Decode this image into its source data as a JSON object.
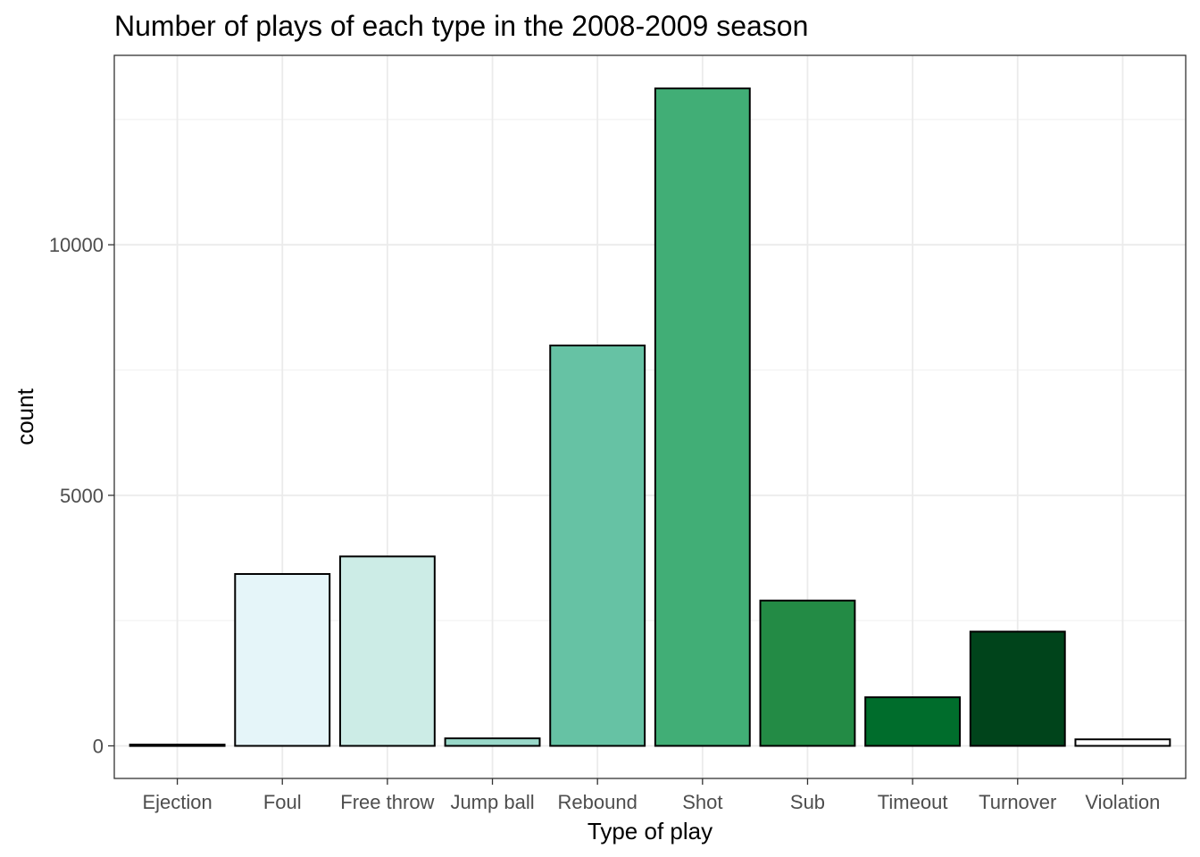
{
  "chart_data": {
    "type": "bar",
    "title": "Number of plays of each type in the 2008-2009 season",
    "xlabel": "Type of play",
    "ylabel": "count",
    "categories": [
      "Ejection",
      "Foul",
      "Free throw",
      "Jump ball",
      "Rebound",
      "Shot",
      "Sub",
      "Timeout",
      "Turnover",
      "Violation"
    ],
    "values": [
      25,
      3430,
      3780,
      150,
      7990,
      13120,
      2900,
      970,
      2280,
      130
    ],
    "fill_colors": [
      "#000000",
      "#e5f5f9",
      "#ccece6",
      "#99d8c9",
      "#66c2a4",
      "#41ae76",
      "#238b45",
      "#006d2c",
      "#00441b",
      "#ffffff"
    ],
    "ylim": [
      -650,
      13780
    ],
    "yticks": [
      0,
      5000,
      10000
    ],
    "ytick_labels": [
      "0",
      "5000",
      "10000"
    ],
    "grid": true,
    "legend": "none"
  }
}
